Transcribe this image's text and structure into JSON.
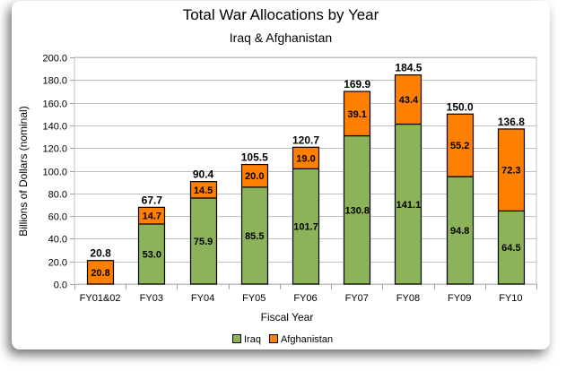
{
  "chart_data": {
    "type": "bar",
    "stacked": true,
    "title": "Total War Allocations by Year",
    "subtitle": "Iraq & Afghanistan",
    "xlabel": "Fiscal Year",
    "ylabel": "Billions of Dollars (nominal)",
    "ylim": [
      0,
      200
    ],
    "yticks": [
      "0.0",
      "20.0",
      "40.0",
      "60.0",
      "80.0",
      "100.0",
      "120.0",
      "140.0",
      "160.0",
      "180.0",
      "200.0"
    ],
    "ytick_values": [
      0,
      20,
      40,
      60,
      80,
      100,
      120,
      140,
      160,
      180,
      200
    ],
    "grid": true,
    "legend_position": "bottom",
    "categories": [
      "FY01&02",
      "FY03",
      "FY04",
      "FY05",
      "FY06",
      "FY07",
      "FY08",
      "FY09",
      "FY10"
    ],
    "series": [
      {
        "name": "Iraq",
        "color": "#8db35a",
        "values": [
          0,
          53.0,
          75.9,
          85.5,
          101.7,
          130.8,
          141.1,
          94.8,
          64.5
        ]
      },
      {
        "name": "Afghanistan",
        "color": "#ff7f00",
        "values": [
          20.8,
          14.7,
          14.5,
          20.0,
          19.0,
          39.1,
          43.4,
          55.2,
          72.3
        ]
      }
    ],
    "totals": [
      "20.8",
      "67.7",
      "90.4",
      "105.5",
      "120.7",
      "169.9",
      "184.5",
      "150.0",
      "136.8"
    ],
    "segment_labels": [
      [
        "",
        "53.0",
        "75.9",
        "85.5",
        "101.7",
        "130.8",
        "141.1",
        "94.8",
        "64.5"
      ],
      [
        "20.8",
        "14.7",
        "14.5",
        "20.0",
        "19.0",
        "39.1",
        "43.4",
        "55.2",
        "72.3"
      ]
    ]
  }
}
